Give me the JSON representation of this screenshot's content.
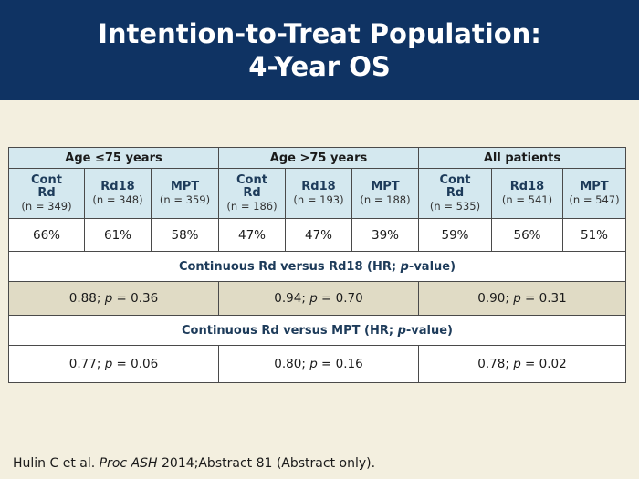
{
  "title": {
    "line1": "Intention-to-Treat Population:",
    "line2": "4-Year OS"
  },
  "table": {
    "groups": [
      "Age ≤75 years",
      "Age >75 years",
      "All patients"
    ],
    "arms": [
      {
        "name": "Cont Rd",
        "n": "(n = 349)",
        "os": "66%"
      },
      {
        "name": "Rd18",
        "n": "(n = 348)",
        "os": "61%"
      },
      {
        "name": "MPT",
        "n": "(n = 359)",
        "os": "58%"
      },
      {
        "name": "Cont Rd",
        "n": "(n = 186)",
        "os": "47%"
      },
      {
        "name": "Rd18",
        "n": "(n = 193)",
        "os": "47%"
      },
      {
        "name": "MPT",
        "n": "(n = 188)",
        "os": "39%"
      },
      {
        "name": "Cont Rd",
        "n": "(n = 535)",
        "os": "59%"
      },
      {
        "name": "Rd18",
        "n": "(n = 541)",
        "os": "56%"
      },
      {
        "name": "MPT",
        "n": "(n = 547)",
        "os": "51%"
      }
    ],
    "comparison1": {
      "label_pre": "Continuous Rd versus Rd18 (HR; ",
      "label_p": "p",
      "label_post": "-value)",
      "values": [
        {
          "hr": "0.88; ",
          "p_label": "p",
          "p": " = 0.36"
        },
        {
          "hr": "0.94; ",
          "p_label": "p",
          "p": " = 0.70"
        },
        {
          "hr": "0.90; ",
          "p_label": "p",
          "p": " = 0.31"
        }
      ]
    },
    "comparison2": {
      "label_pre": "Continuous Rd versus MPT (HR; ",
      "label_p": "p",
      "label_post": "-value)",
      "values": [
        {
          "hr": "0.77; ",
          "p_label": "p",
          "p": " = 0.06"
        },
        {
          "hr": "0.80; ",
          "p_label": "p",
          "p": " = 0.16"
        },
        {
          "hr": "0.78; ",
          "p_label": "p",
          "p": " = 0.02"
        }
      ]
    }
  },
  "footer": {
    "authors": "Hulin C et al. ",
    "journal": "Proc ASH",
    "rest": " 2014;Abstract 81 (Abstract only)."
  },
  "colors": {
    "header_bg": "#0f3363",
    "page_bg": "#f3efdf",
    "table_header_bg": "#d4e8ef",
    "hr_row_bg": "#e0dbc5"
  }
}
